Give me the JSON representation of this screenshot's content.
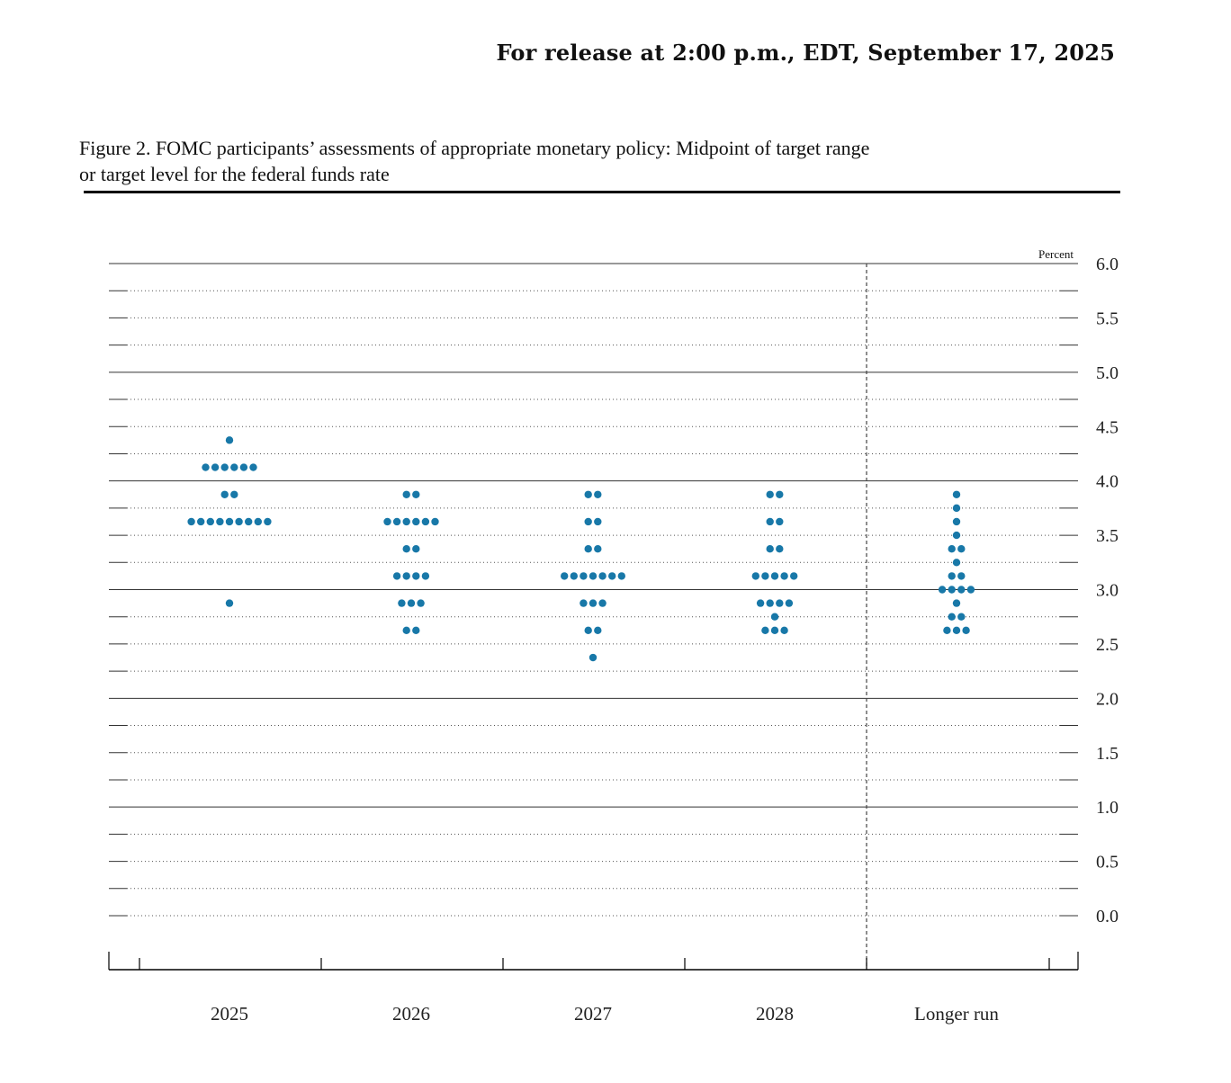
{
  "header": {
    "release_text": "For release at 2:00 p.m., EDT, September 17, 2025"
  },
  "figure": {
    "title_line1": "Figure 2. FOMC participants’ assessments of appropriate monetary policy: Midpoint of target range",
    "title_line2": "or target level for the federal funds rate"
  },
  "colors": {
    "dot": "#1878a8",
    "grid_major": "#333333",
    "grid_minor": "#555555"
  },
  "chart_data": {
    "type": "scatter",
    "title": "",
    "xlabel": "",
    "ylabel": "Percent",
    "ylim": [
      0.0,
      6.0
    ],
    "yticks": [
      "0.0",
      "0.5",
      "1.0",
      "1.5",
      "2.0",
      "2.5",
      "3.0",
      "3.5",
      "4.0",
      "4.5",
      "5.0",
      "5.5",
      "6.0"
    ],
    "categories": [
      "2025",
      "2026",
      "2027",
      "2028",
      "Longer run"
    ],
    "grid": "dotted minor every 0.25, solid major every 1.0",
    "columns": [
      {
        "category": "2025",
        "points": [
          {
            "rate": 4.375,
            "count": 1
          },
          {
            "rate": 4.125,
            "count": 6
          },
          {
            "rate": 3.875,
            "count": 2
          },
          {
            "rate": 3.625,
            "count": 9
          },
          {
            "rate": 2.875,
            "count": 1
          }
        ]
      },
      {
        "category": "2026",
        "points": [
          {
            "rate": 3.875,
            "count": 2
          },
          {
            "rate": 3.625,
            "count": 6
          },
          {
            "rate": 3.375,
            "count": 2
          },
          {
            "rate": 3.125,
            "count": 4
          },
          {
            "rate": 2.875,
            "count": 3
          },
          {
            "rate": 2.625,
            "count": 2
          }
        ]
      },
      {
        "category": "2027",
        "points": [
          {
            "rate": 3.875,
            "count": 2
          },
          {
            "rate": 3.625,
            "count": 2
          },
          {
            "rate": 3.375,
            "count": 2
          },
          {
            "rate": 3.125,
            "count": 7
          },
          {
            "rate": 2.875,
            "count": 3
          },
          {
            "rate": 2.625,
            "count": 2
          },
          {
            "rate": 2.375,
            "count": 1
          }
        ]
      },
      {
        "category": "2028",
        "points": [
          {
            "rate": 3.875,
            "count": 2
          },
          {
            "rate": 3.625,
            "count": 2
          },
          {
            "rate": 3.375,
            "count": 2
          },
          {
            "rate": 3.125,
            "count": 5
          },
          {
            "rate": 2.875,
            "count": 4
          },
          {
            "rate": 2.75,
            "count": 1
          },
          {
            "rate": 2.625,
            "count": 3
          }
        ]
      },
      {
        "category": "Longer run",
        "points": [
          {
            "rate": 3.875,
            "count": 1
          },
          {
            "rate": 3.75,
            "count": 1
          },
          {
            "rate": 3.625,
            "count": 1
          },
          {
            "rate": 3.5,
            "count": 1
          },
          {
            "rate": 3.375,
            "count": 2
          },
          {
            "rate": 3.25,
            "count": 1
          },
          {
            "rate": 3.125,
            "count": 2
          },
          {
            "rate": 3.0,
            "count": 4
          },
          {
            "rate": 2.875,
            "count": 1
          },
          {
            "rate": 2.75,
            "count": 2
          },
          {
            "rate": 2.625,
            "count": 3
          }
        ]
      }
    ]
  }
}
